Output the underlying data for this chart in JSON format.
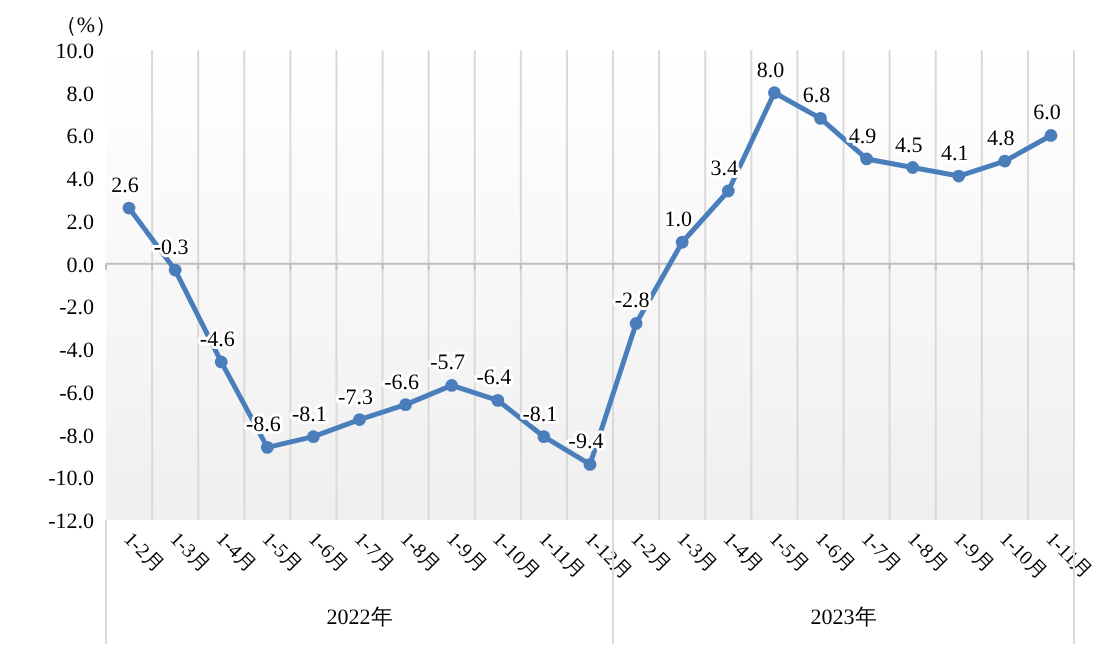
{
  "chart_data": {
    "type": "line",
    "ylabel": "（%）",
    "categories": [
      "1-2月",
      "1-3月",
      "1-4月",
      "1-5月",
      "1-6月",
      "1-7月",
      "1-8月",
      "1-9月",
      "1-10月",
      "1-11月",
      "1-12月",
      "1-2月",
      "1-3月",
      "1-4月",
      "1-5月",
      "1-6月",
      "1-7月",
      "1-8月",
      "1-9月",
      "1-10月",
      "1-11月"
    ],
    "series": [
      {
        "color": "#4a7ebb",
        "values": [
          2.6,
          -0.3,
          -4.6,
          -8.6,
          -8.1,
          -7.3,
          -6.6,
          -5.7,
          -6.4,
          -8.1,
          -9.4,
          -2.8,
          1.0,
          3.4,
          8.0,
          6.8,
          4.9,
          4.5,
          4.1,
          4.8,
          6.0
        ],
        "value_labels": [
          "2.6",
          "-0.3",
          "-4.6",
          "-8.6",
          "-8.1",
          "-7.3",
          "-6.6",
          "-5.7",
          "-6.4",
          "-8.1",
          "-9.4",
          "-2.8",
          "1.0",
          "3.4",
          "8.0",
          "6.8",
          "4.9",
          "4.5",
          "4.1",
          "4.8",
          "6.0"
        ]
      }
    ],
    "ylim": [
      -12,
      10
    ],
    "yticks": [
      {
        "value": -12,
        "label": "-12.0"
      },
      {
        "value": -10,
        "label": "-10.0"
      },
      {
        "value": -8,
        "label": "-8.0"
      },
      {
        "value": -6,
        "label": "-6.0"
      },
      {
        "value": -4,
        "label": "-4.0"
      },
      {
        "value": -2,
        "label": "-2.0"
      },
      {
        "value": 0,
        "label": "0.0"
      },
      {
        "value": 2,
        "label": "2.0"
      },
      {
        "value": 4,
        "label": "4.0"
      },
      {
        "value": 6,
        "label": "6.0"
      },
      {
        "value": 8,
        "label": "8.0"
      },
      {
        "value": 10,
        "label": "10.0"
      }
    ],
    "annotations": [
      "2022年",
      "2023年"
    ],
    "marker": "circle",
    "line_style": "solid",
    "grid": "x"
  }
}
